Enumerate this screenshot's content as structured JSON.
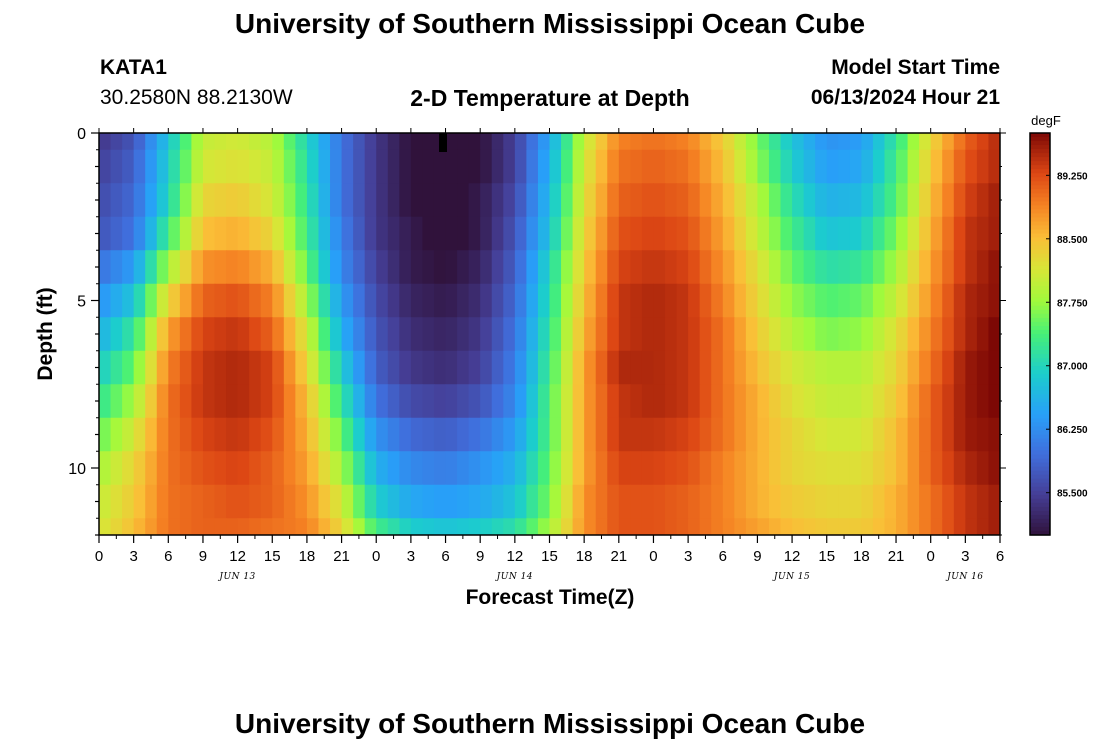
{
  "header": {
    "title_top": "University of Southern Mississippi Ocean Cube",
    "title_bottom": "University of Southern Mississippi Ocean Cube",
    "station": "KATA1",
    "coords": "30.2580N  88.2130W",
    "model_start_label": "Model Start Time",
    "model_start_value": "06/13/2024 Hour 21"
  },
  "chart_data": {
    "type": "heatmap",
    "title": "2-D Temperature at Depth",
    "xlabel": "Forecast Time(Z)",
    "ylabel": "Depth (ft)",
    "x_ticks": [
      "0",
      "3",
      "6",
      "9",
      "12",
      "15",
      "18",
      "21",
      "0",
      "3",
      "6",
      "9",
      "12",
      "15",
      "18",
      "21",
      "0",
      "3",
      "6",
      "9",
      "12",
      "15",
      "18",
      "21",
      "0",
      "3",
      "6"
    ],
    "date_labels": [
      {
        "label": "JUN 13",
        "tick_index": 4
      },
      {
        "label": "JUN 14",
        "tick_index": 12
      },
      {
        "label": "JUN 15",
        "tick_index": 20
      },
      {
        "label": "JUN 16",
        "tick_index": 25
      }
    ],
    "y_ticks": [
      "0",
      "5",
      "10"
    ],
    "y_range": [
      0,
      12
    ],
    "x_range_hours": [
      0,
      78
    ],
    "colorbar": {
      "unit": "degF",
      "labels": [
        "89.250",
        "88.500",
        "87.750",
        "87.000",
        "86.250",
        "85.500"
      ],
      "min": 85.0,
      "max": 89.75
    },
    "depth_levels_ft": [
      0.25,
      1,
      2,
      3,
      4,
      5,
      6,
      7,
      8,
      9,
      10,
      11,
      11.75
    ],
    "time_hours": [
      0,
      3,
      6,
      9,
      12,
      15,
      18,
      21,
      24,
      27,
      30,
      33,
      36,
      39,
      42,
      45,
      48,
      51,
      54,
      57,
      60,
      63,
      66,
      69,
      72,
      75,
      78
    ],
    "temperature_degF": [
      [
        85.4,
        85.7,
        86.8,
        88.0,
        88.1,
        87.9,
        87.0,
        86.0,
        85.4,
        85.0,
        84.8,
        85.0,
        85.5,
        86.5,
        88.0,
        88.9,
        89.0,
        88.9,
        88.4,
        87.6,
        86.8,
        86.3,
        86.4,
        87.2,
        88.3,
        89.1,
        89.5
      ],
      [
        85.5,
        85.8,
        86.9,
        88.1,
        88.2,
        88.0,
        87.1,
        86.0,
        85.4,
        85.0,
        84.8,
        85.0,
        85.5,
        86.6,
        88.1,
        89.0,
        89.1,
        89.0,
        88.5,
        87.7,
        86.9,
        86.4,
        86.5,
        87.3,
        88.4,
        89.2,
        89.5
      ],
      [
        85.6,
        85.9,
        87.0,
        88.3,
        88.4,
        88.1,
        87.2,
        86.0,
        85.4,
        85.0,
        84.9,
        85.1,
        85.6,
        86.7,
        88.2,
        89.1,
        89.2,
        89.1,
        88.6,
        87.9,
        87.1,
        86.6,
        86.7,
        87.4,
        88.5,
        89.3,
        89.6
      ],
      [
        85.7,
        86.0,
        87.3,
        88.5,
        88.6,
        88.3,
        87.3,
        86.1,
        85.4,
        85.1,
        84.9,
        85.1,
        85.7,
        86.8,
        88.3,
        89.2,
        89.3,
        89.2,
        88.7,
        88.0,
        87.3,
        86.8,
        86.9,
        87.6,
        88.6,
        89.4,
        89.6
      ],
      [
        86.0,
        86.4,
        87.8,
        88.8,
        88.9,
        88.6,
        87.5,
        86.2,
        85.5,
        85.1,
        85.0,
        85.2,
        85.8,
        87.0,
        88.4,
        89.3,
        89.4,
        89.3,
        88.8,
        88.2,
        87.5,
        87.1,
        87.2,
        87.8,
        88.7,
        89.4,
        89.7
      ],
      [
        86.3,
        86.8,
        88.3,
        89.1,
        89.2,
        88.9,
        87.8,
        86.4,
        85.6,
        85.2,
        85.1,
        85.3,
        85.9,
        87.1,
        88.5,
        89.4,
        89.5,
        89.4,
        88.9,
        88.3,
        87.7,
        87.4,
        87.5,
        88.0,
        88.8,
        89.5,
        89.7
      ],
      [
        86.6,
        87.2,
        88.7,
        89.3,
        89.4,
        89.1,
        88.1,
        86.6,
        85.7,
        85.3,
        85.2,
        85.4,
        86.0,
        87.2,
        88.6,
        89.4,
        89.5,
        89.4,
        89.0,
        88.4,
        87.9,
        87.6,
        87.7,
        88.2,
        88.9,
        89.5,
        89.8
      ],
      [
        86.9,
        87.5,
        88.9,
        89.4,
        89.5,
        89.3,
        88.3,
        86.9,
        85.8,
        85.4,
        85.3,
        85.5,
        86.1,
        87.3,
        88.7,
        89.5,
        89.5,
        89.4,
        89.0,
        88.5,
        88.1,
        87.9,
        87.9,
        88.3,
        89.0,
        89.6,
        89.8
      ],
      [
        87.2,
        87.8,
        89.0,
        89.4,
        89.5,
        89.3,
        88.5,
        87.2,
        86.0,
        85.6,
        85.5,
        85.7,
        86.2,
        87.4,
        88.7,
        89.4,
        89.5,
        89.4,
        89.0,
        88.6,
        88.2,
        88.0,
        88.0,
        88.4,
        89.1,
        89.6,
        89.8
      ],
      [
        87.5,
        88.1,
        89.0,
        89.3,
        89.4,
        89.2,
        88.6,
        87.5,
        86.3,
        85.9,
        85.8,
        86.0,
        86.4,
        87.4,
        88.7,
        89.4,
        89.4,
        89.3,
        89.0,
        88.6,
        88.3,
        88.1,
        88.1,
        88.5,
        89.1,
        89.6,
        89.7
      ],
      [
        87.8,
        88.3,
        89.0,
        89.2,
        89.3,
        89.1,
        88.7,
        87.8,
        86.6,
        86.2,
        86.1,
        86.3,
        86.6,
        87.5,
        88.7,
        89.3,
        89.3,
        89.2,
        88.9,
        88.6,
        88.3,
        88.2,
        88.2,
        88.5,
        89.1,
        89.5,
        89.7
      ],
      [
        88.0,
        88.4,
        89.0,
        89.1,
        89.2,
        89.1,
        88.8,
        88.1,
        86.9,
        86.5,
        86.4,
        86.5,
        86.8,
        87.6,
        88.8,
        89.2,
        89.2,
        89.1,
        88.9,
        88.6,
        88.4,
        88.3,
        88.3,
        88.6,
        89.0,
        89.4,
        89.6
      ],
      [
        88.1,
        88.5,
        89.0,
        89.1,
        89.1,
        89.0,
        88.9,
        88.3,
        87.3,
        86.9,
        86.8,
        86.9,
        87.1,
        87.8,
        88.8,
        89.2,
        89.2,
        89.1,
        88.9,
        88.7,
        88.5,
        88.4,
        88.4,
        88.6,
        89.0,
        89.4,
        89.6
      ]
    ]
  }
}
